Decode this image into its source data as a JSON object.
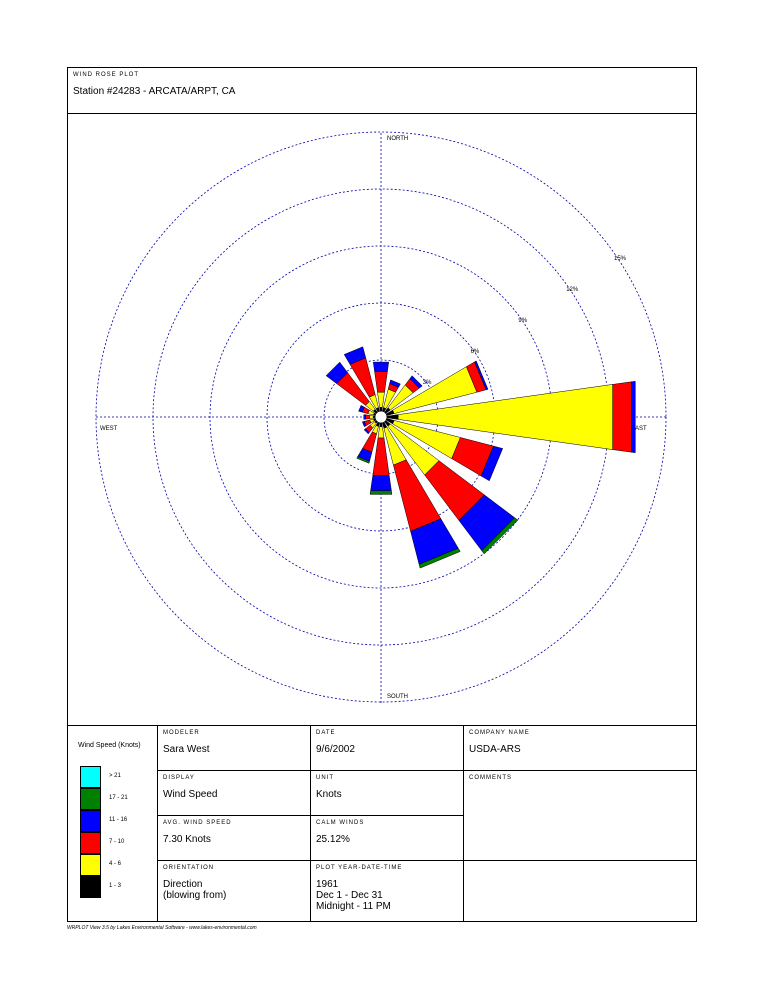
{
  "header": {
    "caption": "WIND ROSE PLOT",
    "station": "Station #24283 - ARCATA/ARPT, CA"
  },
  "chart_data": {
    "type": "wind-rose",
    "directions_deg": [
      0,
      22.5,
      45,
      67.5,
      90,
      112.5,
      135,
      157.5,
      180,
      202.5,
      225,
      247.5,
      270,
      292.5,
      315,
      337.5
    ],
    "speed_classes": [
      "1 - 3",
      "4 - 6",
      "7 - 10",
      "11 - 16",
      "17 - 21",
      "> 21"
    ],
    "class_colors": [
      "#000000",
      "#ffff00",
      "#ff0000",
      "#0000ff",
      "#008000",
      "#00ffff"
    ],
    "series": [
      {
        "direction": 0,
        "values": [
          0.2,
          0.8,
          1.1,
          0.5,
          0.0,
          0.0
        ]
      },
      {
        "direction": 22.5,
        "values": [
          0.2,
          1.0,
          0.3,
          0.2,
          0.0,
          0.0
        ]
      },
      {
        "direction": 45,
        "values": [
          0.3,
          1.5,
          0.4,
          0.2,
          0.0,
          0.0
        ]
      },
      {
        "direction": 67.5,
        "values": [
          0.4,
          4.5,
          0.5,
          0.1,
          0.0,
          0.0
        ]
      },
      {
        "direction": 90,
        "values": [
          0.6,
          11.4,
          1.0,
          0.2,
          0.0,
          0.0
        ]
      },
      {
        "direction": 112.5,
        "values": [
          0.4,
          3.6,
          1.8,
          0.5,
          0.0,
          0.0
        ]
      },
      {
        "direction": 135,
        "values": [
          0.3,
          3.2,
          3.0,
          2.0,
          0.2,
          0.0
        ]
      },
      {
        "direction": 157.5,
        "values": [
          0.3,
          2.0,
          3.6,
          1.8,
          0.2,
          0.0
        ]
      },
      {
        "direction": 180,
        "values": [
          0.2,
          0.6,
          2.0,
          0.8,
          0.2,
          0.0
        ]
      },
      {
        "direction": 202.5,
        "values": [
          0.2,
          0.4,
          1.0,
          0.5,
          0.1,
          0.0
        ]
      },
      {
        "direction": 225,
        "values": [
          0.1,
          0.3,
          0.3,
          0.1,
          0.0,
          0.0
        ]
      },
      {
        "direction": 247.5,
        "values": [
          0.1,
          0.2,
          0.3,
          0.1,
          0.0,
          0.0
        ]
      },
      {
        "direction": 270,
        "values": [
          0.1,
          0.2,
          0.2,
          0.1,
          0.0,
          0.0
        ]
      },
      {
        "direction": 292.5,
        "values": [
          0.1,
          0.3,
          0.3,
          0.2,
          0.0,
          0.0
        ]
      },
      {
        "direction": 315,
        "values": [
          0.2,
          0.5,
          1.9,
          0.7,
          0.0,
          0.0
        ]
      },
      {
        "direction": 337.5,
        "values": [
          0.2,
          0.7,
          2.0,
          0.6,
          0.0,
          0.0
        ]
      }
    ],
    "rings_percent": [
      3,
      6,
      9,
      12,
      15
    ],
    "ring_labels": [
      "3%",
      "6%",
      "9%",
      "12%",
      "15%"
    ],
    "compass": {
      "north": "NORTH",
      "south": "SOUTH",
      "east": "EAST",
      "west": "WEST"
    }
  },
  "info": {
    "legend_title": "Wind Speed (Knots)",
    "modeler": {
      "label": "MODELER",
      "value": "Sara West"
    },
    "date": {
      "label": "DATE",
      "value": "9/6/2002"
    },
    "company": {
      "label": "COMPANY NAME",
      "value": "USDA-ARS"
    },
    "display": {
      "label": "DISPLAY",
      "value": "Wind Speed"
    },
    "unit": {
      "label": "UNIT",
      "value": "Knots"
    },
    "comments": {
      "label": "COMMENTS",
      "value": ""
    },
    "avg_speed": {
      "label": "AVG. WIND SPEED",
      "value": "7.30 Knots"
    },
    "calm": {
      "label": "CALM WINDS",
      "value": "25.12%"
    },
    "orientation": {
      "label": "ORIENTATION",
      "value": "Direction\n(blowing from)"
    },
    "plot_period": {
      "label": "PLOT YEAR-DATE-TIME",
      "value": "1961\nDec 1 - Dec 31\nMidnight  -  11 PM"
    }
  },
  "footer": "WRPLOT View 3.5 by Lakes Environmental Software - www.lakes-environmental.com"
}
